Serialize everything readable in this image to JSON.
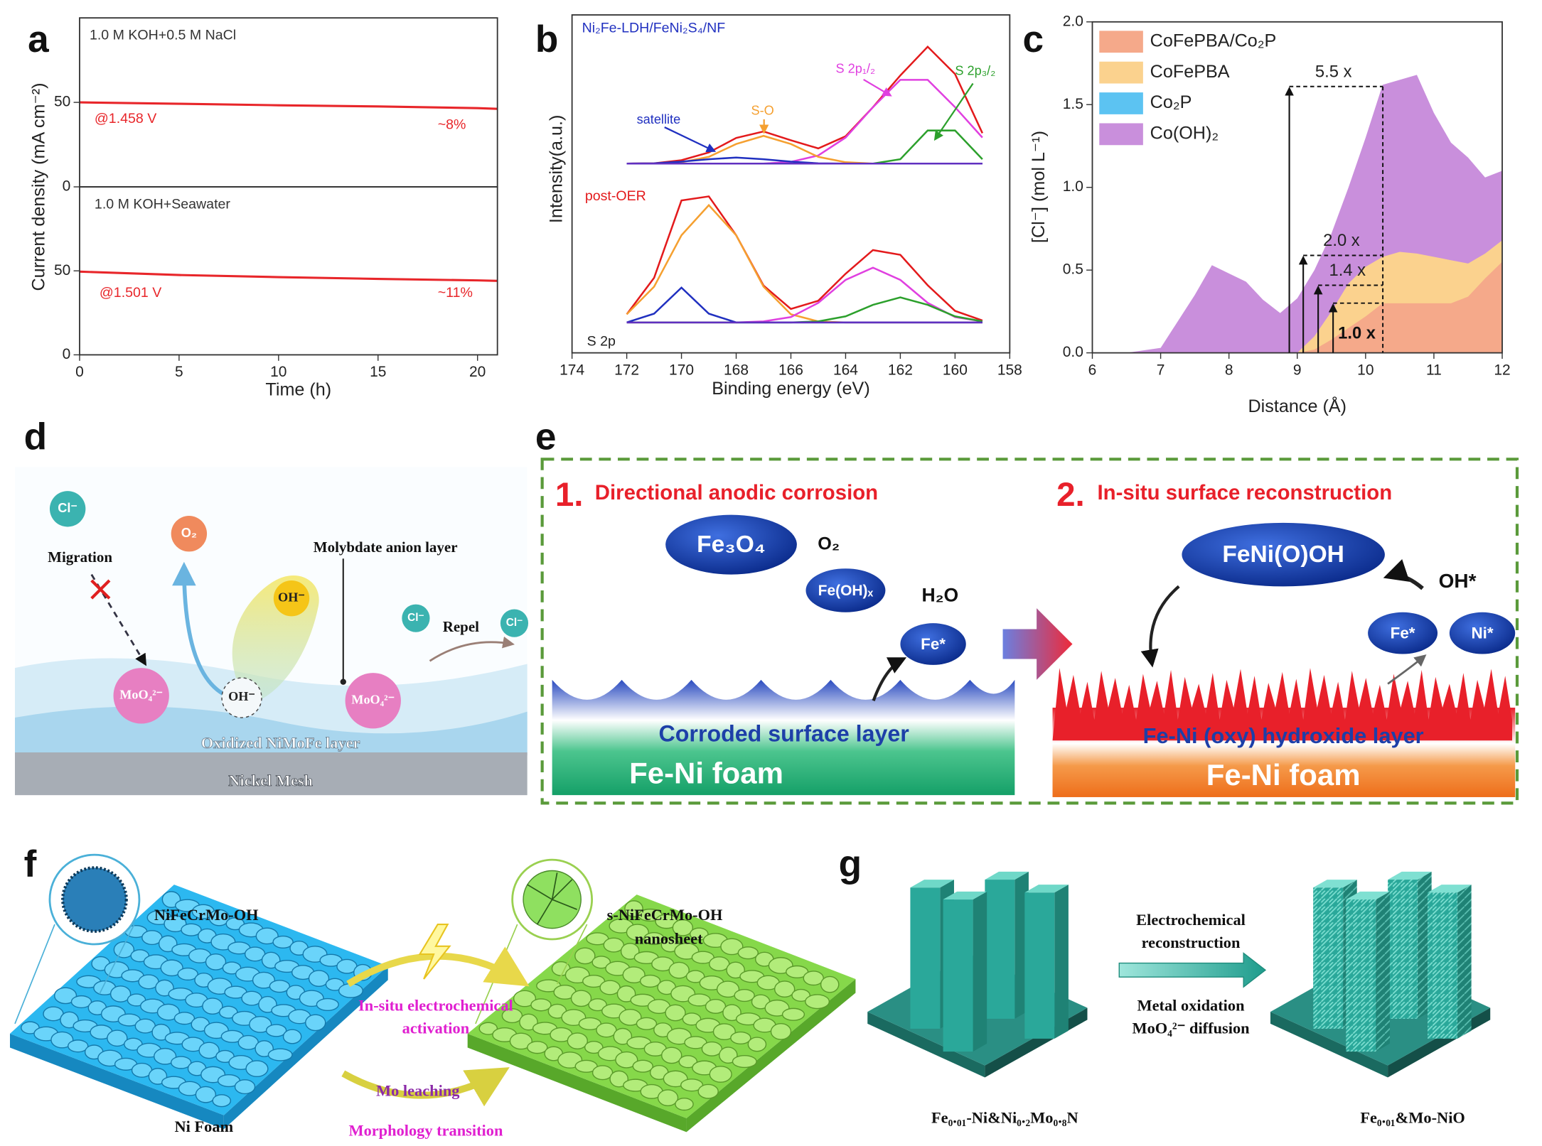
{
  "panels": {
    "labels": [
      "a",
      "b",
      "c",
      "d",
      "e",
      "f",
      "g"
    ]
  },
  "chart_data": [
    {
      "type": "line",
      "annotations": [
        "1.0 M KOH+0.5 M NaCl",
        "@1.458 V",
        "~8%"
      ],
      "ylabel": "Current density (mA cm⁻²)",
      "x": [
        0,
        5,
        10,
        15,
        20,
        21
      ],
      "values": [
        50,
        49.2,
        48.3,
        47.6,
        46.6,
        46.2
      ],
      "color": "#e8262a",
      "xlim": [
        0,
        21
      ],
      "ylim": [
        0,
        100
      ],
      "yticks": [
        0,
        50
      ]
    },
    {
      "type": "line",
      "annotations": [
        "1.0 M KOH+Seawater",
        "@1.501 V",
        "~11%"
      ],
      "xlabel": "Time (h)",
      "x": [
        0,
        5,
        10,
        15,
        20,
        21
      ],
      "values": [
        49.5,
        47.5,
        46.3,
        45.2,
        44.3,
        44
      ],
      "color": "#e8262a",
      "xlim": [
        0,
        21
      ],
      "ylim": [
        0,
        100
      ],
      "yticks": [
        0,
        50
      ],
      "xticks": [
        0,
        5,
        10,
        15,
        20
      ]
    },
    {
      "type": "line",
      "annotations": [
        "Ni₂Fe-LDH/FeNi₂S₄/NF",
        "post-OER",
        "S 2p"
      ],
      "ylabel": "Intensity(a.u.)",
      "xlabel": "Binding energy (eV)",
      "x": [
        172,
        171,
        170,
        169,
        168,
        167,
        166,
        165,
        164,
        163,
        162,
        161,
        160,
        159
      ],
      "xlim": [
        174,
        158
      ],
      "ylim": [
        0,
        100
      ],
      "xticks": [
        174,
        172,
        170,
        168,
        166,
        164,
        162,
        160,
        158
      ],
      "series": [
        {
          "color": "#e31a1c",
          "values": [
            56,
            56.1,
            57,
            59.3,
            63.6,
            65.5,
            62.9,
            60.5,
            64.1,
            72.7,
            82.1,
            90.6,
            82.5,
            65
          ]
        },
        {
          "name": "S 2p₁/₂",
          "color": "#e040e0",
          "values": [
            56,
            56,
            56,
            56,
            56,
            56,
            56.5,
            58.4,
            63.7,
            72.7,
            80.8,
            80.8,
            72.7,
            63.7
          ]
        },
        {
          "name": "S 2p₃/₂",
          "color": "#2ca02c",
          "values": [
            56,
            56,
            56,
            56,
            56,
            56,
            56,
            56,
            56,
            56,
            57.3,
            65.8,
            65.8,
            57.3
          ]
        },
        {
          "name": "S-O",
          "color": "#f5a030",
          "values": [
            56,
            56,
            56.4,
            58,
            61.8,
            64.2,
            61.8,
            58,
            56.4,
            56,
            56,
            56,
            56,
            56
          ]
        },
        {
          "name": "satellite",
          "color": "#2030c0",
          "values": [
            56,
            56.1,
            56.6,
            57.3,
            57.8,
            57.3,
            56.6,
            56.1,
            56,
            56,
            56,
            56,
            56,
            56
          ]
        },
        {
          "color": "#6030c0",
          "values": [
            56,
            56,
            56,
            56,
            56,
            56,
            56,
            56,
            56,
            56,
            56,
            56,
            56,
            56
          ]
        },
        {
          "color": "#e31a1c",
          "values": [
            11.4,
            22.2,
            45.1,
            46.3,
            34.8,
            19.9,
            13,
            15.4,
            23.4,
            30.4,
            29,
            20,
            12.4,
            9.6
          ]
        },
        {
          "color": "#f5a030",
          "values": [
            11.4,
            19.6,
            34.8,
            43.7,
            34.8,
            19.6,
            11.4,
            9.3,
            9,
            9,
            9,
            9,
            9,
            9
          ]
        },
        {
          "color": "#e040e0",
          "values": [
            9,
            9,
            9,
            9,
            9,
            9.3,
            10.6,
            14.8,
            21.6,
            25.2,
            21.6,
            14.8,
            10.6,
            9.3
          ]
        },
        {
          "color": "#2ca02c",
          "values": [
            9,
            9,
            9,
            9,
            9,
            9,
            9,
            9.3,
            10.8,
            14.2,
            16.4,
            14.2,
            10.8,
            9.3
          ]
        },
        {
          "color": "#2030c0",
          "values": [
            9,
            11.6,
            19.3,
            11.6,
            9,
            9,
            9,
            9,
            9,
            9,
            9,
            9,
            9,
            9
          ]
        },
        {
          "color": "#6030c0",
          "values": [
            9,
            9,
            9,
            9,
            9,
            9,
            9,
            9,
            9,
            9,
            9,
            9,
            9,
            9
          ]
        }
      ]
    },
    {
      "type": "area",
      "xlabel": "Distance (Å)",
      "ylabel": "[Cl⁻] (mol L⁻¹)",
      "legend": "upper left",
      "annotations": [
        "5.5 x",
        "2.0 x",
        "1.4 x",
        "1.0 x"
      ],
      "x": [
        6,
        6.5,
        7,
        7.5,
        7.75,
        8,
        8.25,
        8.5,
        8.75,
        9,
        9.25,
        9.5,
        9.75,
        10,
        10.25,
        10.5,
        10.75,
        11,
        11.25,
        11.5,
        11.75,
        12
      ],
      "xlim": [
        6,
        12
      ],
      "ylim": [
        0,
        2
      ],
      "xticks": [
        6,
        7,
        8,
        9,
        10,
        11,
        12
      ],
      "yticks": [
        {
          "value": 0,
          "label": "0.0"
        },
        0.5,
        {
          "value": 1,
          "label": "1.0"
        },
        1.5,
        {
          "value": 2,
          "label": "2.0"
        }
      ],
      "series": [
        {
          "name": "CoFePBA/Co₂P",
          "color": "#f5a98a",
          "values": [
            0,
            0,
            0,
            0,
            0,
            0,
            0,
            0,
            0,
            0,
            0.02,
            0.08,
            0.15,
            0.22,
            0.3,
            0.3,
            0.3,
            0.3,
            0.3,
            0.34,
            0.45,
            0.55
          ]
        },
        {
          "name": "CoFePBA",
          "color": "#fbd28e",
          "values": [
            0,
            0,
            0,
            0,
            0,
            0,
            0,
            0,
            0,
            0,
            0.1,
            0.25,
            0.42,
            0.52,
            0.58,
            0.61,
            0.6,
            0.58,
            0.56,
            0.54,
            0.6,
            0.68
          ]
        },
        {
          "name": "Co₂P",
          "color": "#5cc3f2",
          "values": [
            0,
            0,
            0,
            0,
            0,
            0,
            0,
            0,
            0,
            0,
            0.05,
            0.18,
            0.3,
            0.38,
            0.43,
            0.45,
            0.45,
            0.43,
            0.42,
            0.43,
            0.52,
            0.65
          ]
        },
        {
          "name": "Co(OH)₂",
          "color": "#c98fdc",
          "values": [
            0,
            0,
            0.03,
            0.35,
            0.53,
            0.48,
            0.43,
            0.32,
            0.24,
            0.33,
            0.5,
            0.72,
            1.0,
            1.3,
            1.62,
            1.65,
            1.68,
            1.45,
            1.27,
            1.18,
            1.06,
            1.1
          ]
        }
      ]
    }
  ],
  "diagram_d": {
    "cl_ions": [
      "Cl⁻",
      "Cl⁻",
      "Cl⁻"
    ],
    "migration": "Migration",
    "o2": "O₂",
    "molybdate": "Molybdate anion layer",
    "oh": [
      "OH⁻",
      "OH⁻"
    ],
    "repel": "Repel",
    "moo4": [
      "MoO₄²⁻",
      "MoO₄²⁻"
    ],
    "oxidized_layer": "Oxidized NiMoFe layer",
    "nickel_mesh": "Nickel Mesh"
  },
  "diagram_e": {
    "step1": {
      "number": "1.",
      "title": "Directional anodic corrosion"
    },
    "step2": {
      "number": "2.",
      "title": "In-situ surface reconstruction"
    },
    "fe3o4": "Fe₃O₄",
    "o2": "O₂",
    "feoh": "Fe(OH)ₓ",
    "h2o": "H₂O",
    "fe_star": [
      "Fe*",
      "Fe*"
    ],
    "feni_ooh": "FeNi(O)OH",
    "oh_star": "OH*",
    "ni_star": "Ni*",
    "corroded_layer": "Corroded surface layer",
    "oxy_layer": "Fe-Ni (oxy) hydroxide layer",
    "foam": [
      "Fe-Ni foam",
      "Fe-Ni foam"
    ]
  },
  "diagram_f": {
    "precursor": "NiFeCrMo-OH",
    "product": [
      "s-NiFeCrMo-OH",
      "nanosheet"
    ],
    "activation": [
      "In-situ electrochemical",
      "activation"
    ],
    "leaching": "Mo  leaching",
    "morphology": "Morphology transition",
    "substrate": "Ni Foam"
  },
  "diagram_g": {
    "process": [
      "Electrochemical",
      "reconstruction"
    ],
    "steps": [
      "Metal oxidation",
      "MoO₄²⁻ diffusion"
    ],
    "precursor": "Fe₀.₀₁-Ni&Ni₀.₂Mo₀.₈N",
    "product": "Fe₀.₀₁&Mo-NiO"
  }
}
